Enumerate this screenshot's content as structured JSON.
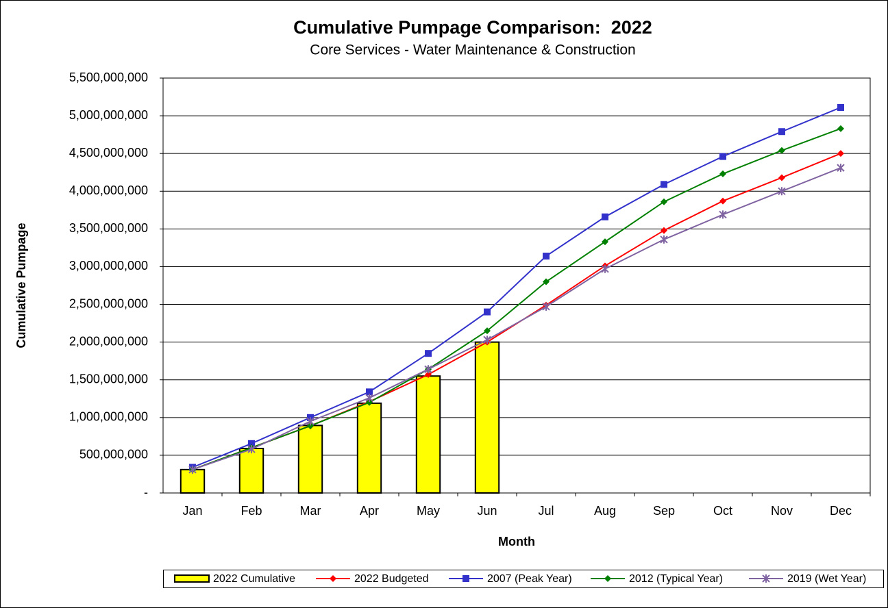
{
  "chart_data": {
    "type": "combo",
    "title": "Cumulative Pumpage Comparison:  2022",
    "subtitle": "Core Services - Water Maintenance & Construction",
    "x_label": "Month",
    "y_label": "Cumulative Pumpage",
    "categories": [
      "Jan",
      "Feb",
      "Mar",
      "Apr",
      "May",
      "Jun",
      "Jul",
      "Aug",
      "Sep",
      "Oct",
      "Nov",
      "Dec"
    ],
    "ylim": [
      0,
      5500000000
    ],
    "yticks": [
      {
        "value": 0,
        "label": "-"
      },
      {
        "value": 500000000,
        "label": "500,000,000"
      },
      {
        "value": 1000000000,
        "label": "1,000,000,000"
      },
      {
        "value": 1500000000,
        "label": "1,500,000,000"
      },
      {
        "value": 2000000000,
        "label": "2,000,000,000"
      },
      {
        "value": 2500000000,
        "label": "2,500,000,000"
      },
      {
        "value": 3000000000,
        "label": "3,000,000,000"
      },
      {
        "value": 3500000000,
        "label": "3,500,000,000"
      },
      {
        "value": 4000000000,
        "label": "4,000,000,000"
      },
      {
        "value": 4500000000,
        "label": "4,500,000,000"
      },
      {
        "value": 5000000000,
        "label": "5,000,000,000"
      },
      {
        "value": 5500000000,
        "label": "5,500,000,000"
      }
    ],
    "grid": true,
    "legend": "bottom",
    "series": [
      {
        "name": "2022 Cumulative",
        "type": "bar",
        "color": "#ffff00",
        "values": [
          310000000,
          590000000,
          895000000,
          1190000000,
          1550000000,
          2000000000,
          null,
          null,
          null,
          null,
          null,
          null
        ]
      },
      {
        "name": "2022 Budgeted",
        "type": "line",
        "color": "#ff0000",
        "marker": "diamond",
        "values": [
          310000000,
          600000000,
          890000000,
          1210000000,
          1570000000,
          2000000000,
          2490000000,
          3010000000,
          3480000000,
          3870000000,
          4180000000,
          4500000000
        ]
      },
      {
        "name": "2007 (Peak Year)",
        "type": "line",
        "color": "#3333cc",
        "marker": "square",
        "values": [
          340000000,
          655000000,
          1000000000,
          1340000000,
          1850000000,
          2400000000,
          3140000000,
          3660000000,
          4090000000,
          4460000000,
          4790000000,
          5110000000
        ]
      },
      {
        "name": "2012 (Typical Year)",
        "type": "line",
        "color": "#008000",
        "marker": "diamond",
        "values": [
          310000000,
          600000000,
          890000000,
          1200000000,
          1640000000,
          2150000000,
          2800000000,
          3330000000,
          3860000000,
          4230000000,
          4540000000,
          4830000000
        ]
      },
      {
        "name": "2019 (Wet Year)",
        "type": "line",
        "color": "#8064a2",
        "marker": "star",
        "values": [
          310000000,
          580000000,
          950000000,
          1260000000,
          1640000000,
          2030000000,
          2470000000,
          2970000000,
          3360000000,
          3690000000,
          4000000000,
          4310000000
        ]
      }
    ]
  }
}
